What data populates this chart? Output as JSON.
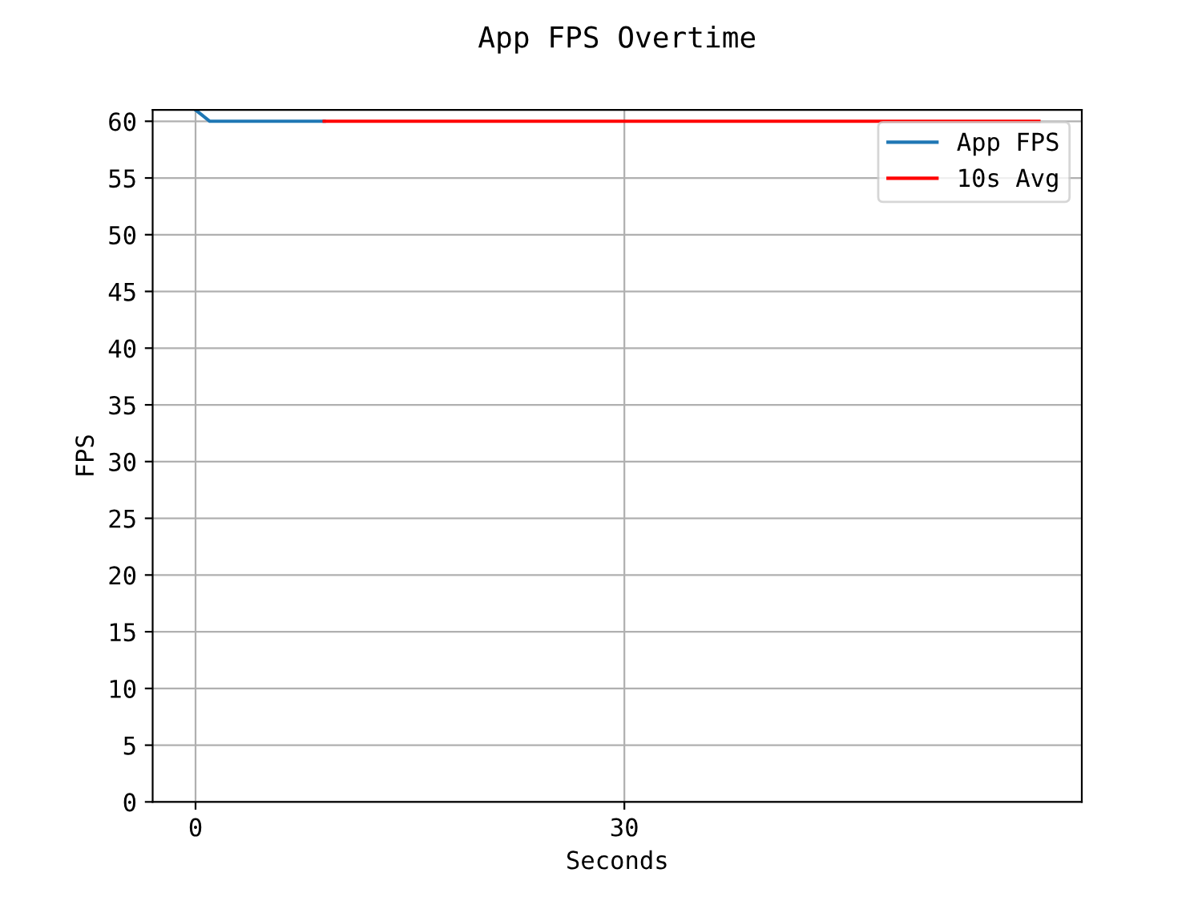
{
  "chart_data": {
    "type": "line",
    "title": "App FPS Overtime",
    "xlabel": "Seconds",
    "ylabel": "FPS",
    "series": [
      {
        "name": "App FPS",
        "color": "#1f77b4",
        "x": [
          0,
          1,
          5,
          9
        ],
        "values": [
          61,
          60,
          60,
          60
        ]
      },
      {
        "name": "10s Avg",
        "color": "#ff0000",
        "x": [
          9,
          59
        ],
        "values": [
          60,
          60
        ]
      }
    ],
    "xlim": [
      -3,
      62
    ],
    "xticks": [
      0,
      30
    ],
    "ylim": [
      0,
      61
    ],
    "yticks": [
      0,
      5,
      10,
      15,
      20,
      25,
      30,
      35,
      40,
      45,
      50,
      55,
      60
    ],
    "grid": true,
    "legend": "top right"
  }
}
